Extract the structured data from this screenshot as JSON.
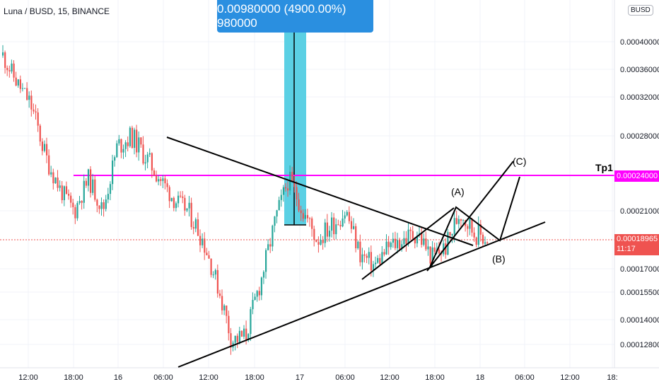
{
  "symbol_info": "Luna / BUSD, 15, BINANCE",
  "currency_badge": "BUSD",
  "measure_banner": "0.00980000 (4900.00%) 980000",
  "target_label": "Tp1",
  "target_price": "0.00024000",
  "last_price": "0.00018965",
  "countdown": "11:17",
  "wave_labels": [
    "(A)",
    "(B)",
    "(C)"
  ],
  "colors": {
    "up": "#26a69a",
    "down": "#ef5350",
    "target": "#ff00ff",
    "measure": "#5bd0e4",
    "banner": "#2a8fe0",
    "lines": "#000000"
  },
  "chart_data": {
    "type": "candlestick",
    "title": "Luna / BUSD, 15, BINANCE",
    "y_ticks": [
      "0.00040000",
      "0.00036000",
      "0.00032000",
      "0.00028000",
      "0.00021000",
      "0.00017000",
      "0.00015500",
      "0.00014000",
      "0.00012800"
    ],
    "x_ticks": [
      "12:00",
      "18:00",
      "16",
      "06:00",
      "12:00",
      "18:00",
      "17",
      "06:00",
      "12:00",
      "18:00",
      "18",
      "06:00",
      "12:00",
      "18:"
    ],
    "horizontal_levels": [
      {
        "label": "Tp1",
        "value": 0.00024
      }
    ],
    "last_price": 0.00018965,
    "measurement": {
      "price_change": 0.0098,
      "percent": 4900.0,
      "ticks": 980000
    },
    "path_price_points": [
      0.00038,
      0.00034,
      0.00031,
      0.00026,
      0.00023,
      0.00021,
      0.00024,
      0.00021,
      0.00027,
      0.00028,
      0.00026,
      0.00024,
      0.00022,
      0.00021,
      0.00019,
      0.00016,
      0.00013,
      0.000132,
      0.00016,
      0.0002,
      0.00024,
      0.00021,
      0.00019,
      0.0002,
      0.00021,
      0.00018,
      0.000172,
      0.000185,
      0.00019,
      0.000195,
      0.000178,
      0.000185,
      0.00021,
      0.000195,
      0.00019
    ]
  }
}
